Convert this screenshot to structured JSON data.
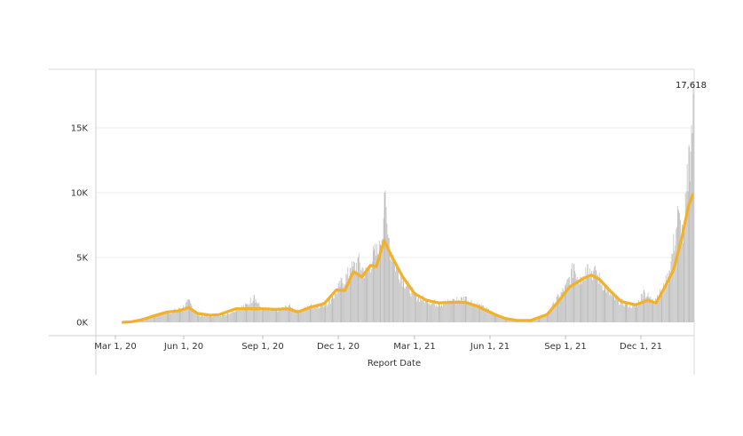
{
  "chart_data": {
    "type": "bar",
    "xlabel": "Report Date",
    "ylabel": "",
    "ylim": [
      0,
      18500
    ],
    "grid": true,
    "x_ticks": [
      "Mar 1, 20",
      "Jun 1, 20",
      "Sep 1, 20",
      "Dec 1, 20",
      "Mar 1, 21",
      "Jun 1, 21",
      "Sep 1, 21",
      "Dec 1, 21"
    ],
    "y_ticks": [
      {
        "value": 0,
        "label": "0K"
      },
      {
        "value": 5000,
        "label": "5K"
      },
      {
        "value": 10000,
        "label": "10K"
      },
      {
        "value": 15000,
        "label": "15K"
      }
    ],
    "peak_label": {
      "date": "2022-01-07",
      "value": 17618,
      "text": "17,618"
    },
    "series": [
      {
        "role": "daily",
        "color": "#c8c8c8",
        "points": [
          [
            "2020-03-10",
            0
          ],
          [
            "2020-03-20",
            150
          ],
          [
            "2020-04-01",
            300
          ],
          [
            "2020-04-15",
            600
          ],
          [
            "2020-05-01",
            800
          ],
          [
            "2020-05-15",
            1100
          ],
          [
            "2020-05-26",
            1700
          ],
          [
            "2020-06-05",
            600
          ],
          [
            "2020-06-20",
            500
          ],
          [
            "2020-07-10",
            700
          ],
          [
            "2020-07-20",
            1100
          ],
          [
            "2020-08-01",
            1400
          ],
          [
            "2020-08-10",
            2100
          ],
          [
            "2020-08-20",
            1000
          ],
          [
            "2020-09-05",
            1000
          ],
          [
            "2020-09-20",
            1300
          ],
          [
            "2020-10-01",
            900
          ],
          [
            "2020-10-15",
            1300
          ],
          [
            "2020-11-01",
            1500
          ],
          [
            "2020-11-10",
            2000
          ],
          [
            "2020-11-20",
            3200
          ],
          [
            "2020-12-01",
            4200
          ],
          [
            "2020-12-10",
            5000
          ],
          [
            "2020-12-20",
            4000
          ],
          [
            "2020-12-28",
            5500
          ],
          [
            "2021-01-05",
            6000
          ],
          [
            "2021-01-10",
            10000
          ],
          [
            "2021-01-15",
            6500
          ],
          [
            "2021-01-20",
            5200
          ],
          [
            "2021-02-01",
            3500
          ],
          [
            "2021-02-15",
            2200
          ],
          [
            "2021-03-01",
            1800
          ],
          [
            "2021-03-15",
            1500
          ],
          [
            "2021-04-01",
            1800
          ],
          [
            "2021-04-15",
            2000
          ],
          [
            "2021-05-01",
            1400
          ],
          [
            "2021-05-20",
            700
          ],
          [
            "2021-06-01",
            300
          ],
          [
            "2021-06-15",
            150
          ],
          [
            "2021-07-01",
            100
          ],
          [
            "2021-07-10",
            300
          ],
          [
            "2021-07-20",
            700
          ],
          [
            "2021-08-01",
            2000
          ],
          [
            "2021-08-10",
            2800
          ],
          [
            "2021-08-20",
            4500
          ],
          [
            "2021-08-28",
            3500
          ],
          [
            "2021-09-05",
            4500
          ],
          [
            "2021-09-15",
            4000
          ],
          [
            "2021-09-25",
            3000
          ],
          [
            "2021-10-05",
            2000
          ],
          [
            "2021-10-20",
            1500
          ],
          [
            "2021-11-01",
            1300
          ],
          [
            "2021-11-10",
            2500
          ],
          [
            "2021-11-20",
            1800
          ],
          [
            "2021-12-01",
            2500
          ],
          [
            "2021-12-10",
            4000
          ],
          [
            "2021-12-20",
            8700
          ],
          [
            "2021-12-27",
            7000
          ],
          [
            "2022-01-02",
            13500
          ],
          [
            "2022-01-07",
            17618
          ]
        ]
      },
      {
        "role": "rolling-average",
        "color": "#f4b125",
        "points": [
          [
            "2020-03-10",
            0
          ],
          [
            "2020-03-20",
            50
          ],
          [
            "2020-04-01",
            200
          ],
          [
            "2020-04-15",
            500
          ],
          [
            "2020-05-01",
            800
          ],
          [
            "2020-05-15",
            900
          ],
          [
            "2020-05-26",
            1150
          ],
          [
            "2020-06-05",
            700
          ],
          [
            "2020-06-20",
            550
          ],
          [
            "2020-07-01",
            600
          ],
          [
            "2020-07-20",
            1050
          ],
          [
            "2020-08-10",
            1050
          ],
          [
            "2020-08-20",
            1050
          ],
          [
            "2020-09-05",
            1000
          ],
          [
            "2020-09-20",
            1050
          ],
          [
            "2020-10-01",
            800
          ],
          [
            "2020-10-15",
            1150
          ],
          [
            "2020-11-01",
            1450
          ],
          [
            "2020-11-15",
            2500
          ],
          [
            "2020-11-25",
            2450
          ],
          [
            "2020-12-05",
            3900
          ],
          [
            "2020-12-15",
            3500
          ],
          [
            "2020-12-25",
            4400
          ],
          [
            "2021-01-01",
            4300
          ],
          [
            "2021-01-10",
            6300
          ],
          [
            "2021-01-20",
            4950
          ],
          [
            "2021-02-01",
            3500
          ],
          [
            "2021-02-15",
            2200
          ],
          [
            "2021-03-01",
            1700
          ],
          [
            "2021-03-15",
            1500
          ],
          [
            "2021-04-01",
            1550
          ],
          [
            "2021-04-15",
            1550
          ],
          [
            "2021-05-01",
            1200
          ],
          [
            "2021-05-20",
            600
          ],
          [
            "2021-06-01",
            300
          ],
          [
            "2021-06-15",
            150
          ],
          [
            "2021-07-01",
            150
          ],
          [
            "2021-07-20",
            600
          ],
          [
            "2021-08-01",
            1500
          ],
          [
            "2021-08-15",
            2700
          ],
          [
            "2021-09-01",
            3400
          ],
          [
            "2021-09-10",
            3650
          ],
          [
            "2021-09-20",
            3300
          ],
          [
            "2021-10-01",
            2500
          ],
          [
            "2021-10-15",
            1600
          ],
          [
            "2021-11-01",
            1350
          ],
          [
            "2021-11-15",
            1700
          ],
          [
            "2021-11-25",
            1500
          ],
          [
            "2021-12-05",
            2700
          ],
          [
            "2021-12-15",
            4000
          ],
          [
            "2021-12-25",
            6500
          ],
          [
            "2022-01-02",
            9000
          ],
          [
            "2022-01-07",
            9850
          ]
        ]
      }
    ]
  }
}
